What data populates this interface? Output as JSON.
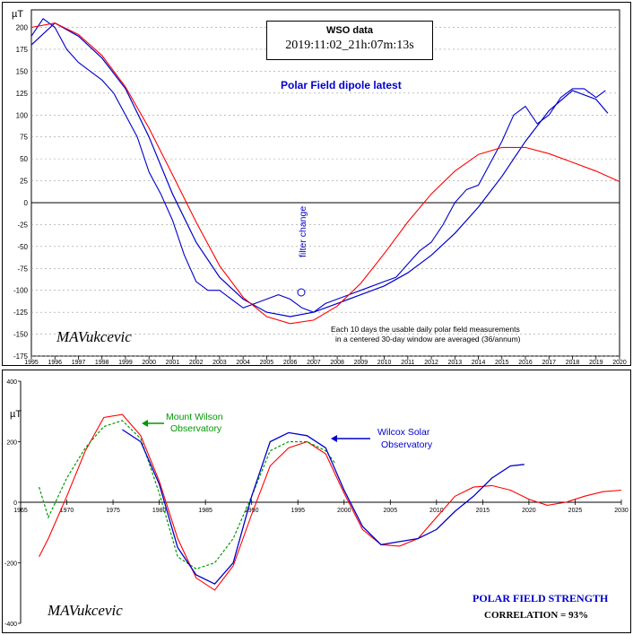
{
  "top": {
    "box_title": "WSO data",
    "timestamp": "2019:11:02_21h:07m:13s",
    "title": "Polar Field dipole latest",
    "unit": "µT",
    "signature": "MAVukcevic",
    "annotation": "filter change",
    "note_line1": "Each 10 days the usable daily polar field measurements",
    "note_line2": "in a centered 30-day window are averaged (36/annum)"
  },
  "bottom": {
    "unit": "µT",
    "signature": "MAVukcevic",
    "mw_label_1": "Mount Wilson",
    "mw_label_2": "Observatory",
    "wso_label_1": "Wilcox Solar",
    "wso_label_2": "Observatory",
    "title": "POLAR FIELD STRENGTH",
    "correlation": "CORRELATION = 93%"
  },
  "chart_data": [
    {
      "type": "line",
      "title": "Polar Field dipole latest",
      "ylabel": "µT",
      "xlim": [
        1995,
        2020
      ],
      "ylim": [
        -175,
        220
      ],
      "yticks": [
        -175,
        -150,
        -125,
        -100,
        -75,
        -50,
        -25,
        0,
        25,
        50,
        75,
        100,
        125,
        150,
        175,
        200
      ],
      "xticks": [
        1995,
        1996,
        1997,
        1998,
        1999,
        2000,
        2001,
        2002,
        2003,
        2004,
        2005,
        2006,
        2007,
        2008,
        2009,
        2010,
        2011,
        2012,
        2013,
        2014,
        2015,
        2016,
        2017,
        2018,
        2019,
        2020
      ],
      "grid": true,
      "series": [
        {
          "color": "#0000cc",
          "x": [
            1995.0,
            1995.5,
            1996.0,
            1996.5,
            1997.0,
            1997.5,
            1998.0,
            1998.5,
            1999.0,
            1999.5,
            2000.0,
            2000.5,
            2001.0,
            2001.5,
            2002.0,
            2002.5,
            2003.0,
            2003.5,
            2004.0,
            2004.5,
            2005.0,
            2005.5,
            2006.0,
            2006.5,
            2007.0,
            2007.5,
            2008.0,
            2008.5,
            2009.0,
            2009.5,
            2010.0,
            2010.5,
            2011.0,
            2011.5,
            2012.0,
            2012.5,
            2013.0,
            2013.5,
            2014.0,
            2014.5,
            2015.0,
            2015.5,
            2016.0,
            2016.5,
            2017.0,
            2017.5,
            2018.0,
            2018.5,
            2019.0,
            2019.4
          ],
          "values": [
            190,
            210,
            200,
            175,
            160,
            150,
            140,
            125,
            100,
            75,
            35,
            10,
            -20,
            -60,
            -90,
            -100,
            -100,
            -110,
            -120,
            -115,
            -110,
            -105,
            -110,
            -120,
            -125,
            -115,
            -110,
            -105,
            -100,
            -95,
            -90,
            -85,
            -70,
            -55,
            -45,
            -25,
            0,
            15,
            20,
            45,
            70,
            100,
            110,
            90,
            100,
            120,
            130,
            130,
            120,
            128
          ]
        },
        {
          "color": "#0000cc",
          "x": [
            1995.0,
            1996.0,
            1997.0,
            1998.0,
            1999.0,
            2000.0,
            2001.0,
            2002.0,
            2003.0,
            2004.0,
            2005.0,
            2006.0,
            2007.0,
            2008.0,
            2009.0,
            2010.0,
            2011.0,
            2012.0,
            2013.0,
            2014.0,
            2015.0,
            2016.0,
            2017.0,
            2018.0,
            2019.0,
            2019.5
          ],
          "values": [
            180,
            205,
            190,
            165,
            130,
            75,
            10,
            -45,
            -85,
            -110,
            -125,
            -130,
            -125,
            -115,
            -105,
            -95,
            -80,
            -60,
            -35,
            -5,
            30,
            70,
            105,
            128,
            118,
            102
          ]
        },
        {
          "color": "#ff0000",
          "x": [
            1995.0,
            1996.0,
            1997.0,
            1998.0,
            1999.0,
            2000.0,
            2001.0,
            2002.0,
            2003.0,
            2004.0,
            2005.0,
            2006.0,
            2007.0,
            2008.0,
            2009.0,
            2010.0,
            2011.0,
            2012.0,
            2013.0,
            2014.0,
            2015.0,
            2016.0,
            2017.0,
            2018.0,
            2019.0,
            2020.0
          ],
          "values": [
            200,
            205,
            192,
            168,
            132,
            85,
            32,
            -22,
            -72,
            -108,
            -130,
            -138,
            -134,
            -118,
            -92,
            -58,
            -22,
            10,
            36,
            55,
            63,
            63,
            56,
            46,
            36,
            24
          ]
        }
      ]
    },
    {
      "type": "line",
      "ylabel": "µT",
      "xlim": [
        1965,
        2030
      ],
      "ylim": [
        -400,
        400
      ],
      "yticks": [
        -400,
        -200,
        0,
        200,
        400
      ],
      "xticks": [
        1965,
        1970,
        1975,
        1980,
        1985,
        1990,
        1995,
        2000,
        2005,
        2010,
        2015,
        2020,
        2025,
        2030
      ],
      "grid": false,
      "series": [
        {
          "color": "#ff0000",
          "x": [
            1967,
            1968,
            1970,
            1972,
            1974,
            1976,
            1978,
            1980,
            1982,
            1984,
            1986,
            1988,
            1990,
            1992,
            1994,
            1996,
            1998,
            2000,
            2002,
            2004,
            2006,
            2008,
            2010,
            2012,
            2014,
            2016,
            2018,
            2020,
            2022,
            2024,
            2026,
            2028,
            2030
          ],
          "values": [
            -180,
            -120,
            20,
            170,
            280,
            290,
            220,
            70,
            -120,
            -250,
            -290,
            -210,
            -40,
            120,
            180,
            200,
            160,
            30,
            -90,
            -140,
            -145,
            -120,
            -50,
            20,
            50,
            55,
            40,
            10,
            -10,
            0,
            20,
            35,
            40
          ]
        },
        {
          "color": "#009900",
          "x": [
            1967,
            1968,
            1970,
            1972,
            1974,
            1976,
            1978,
            1980,
            1982,
            1984,
            1986,
            1988,
            1990,
            1992,
            1994,
            1996,
            1998,
            1999
          ],
          "values": [
            50,
            -50,
            80,
            180,
            250,
            270,
            210,
            30,
            -180,
            -220,
            -200,
            -120,
            20,
            170,
            200,
            200,
            170,
            130
          ]
        },
        {
          "color": "#0000cc",
          "x": [
            1976,
            1978,
            1980,
            1982,
            1984,
            1986,
            1988,
            1990,
            1992,
            1994,
            1996,
            1998,
            2000,
            2002,
            2004,
            2006,
            2008,
            2010,
            2012,
            2014,
            2016,
            2018,
            2019.5
          ],
          "values": [
            240,
            200,
            60,
            -150,
            -240,
            -270,
            -200,
            20,
            200,
            230,
            220,
            180,
            40,
            -80,
            -140,
            -130,
            -120,
            -90,
            -30,
            20,
            80,
            120,
            125
          ]
        }
      ]
    }
  ]
}
